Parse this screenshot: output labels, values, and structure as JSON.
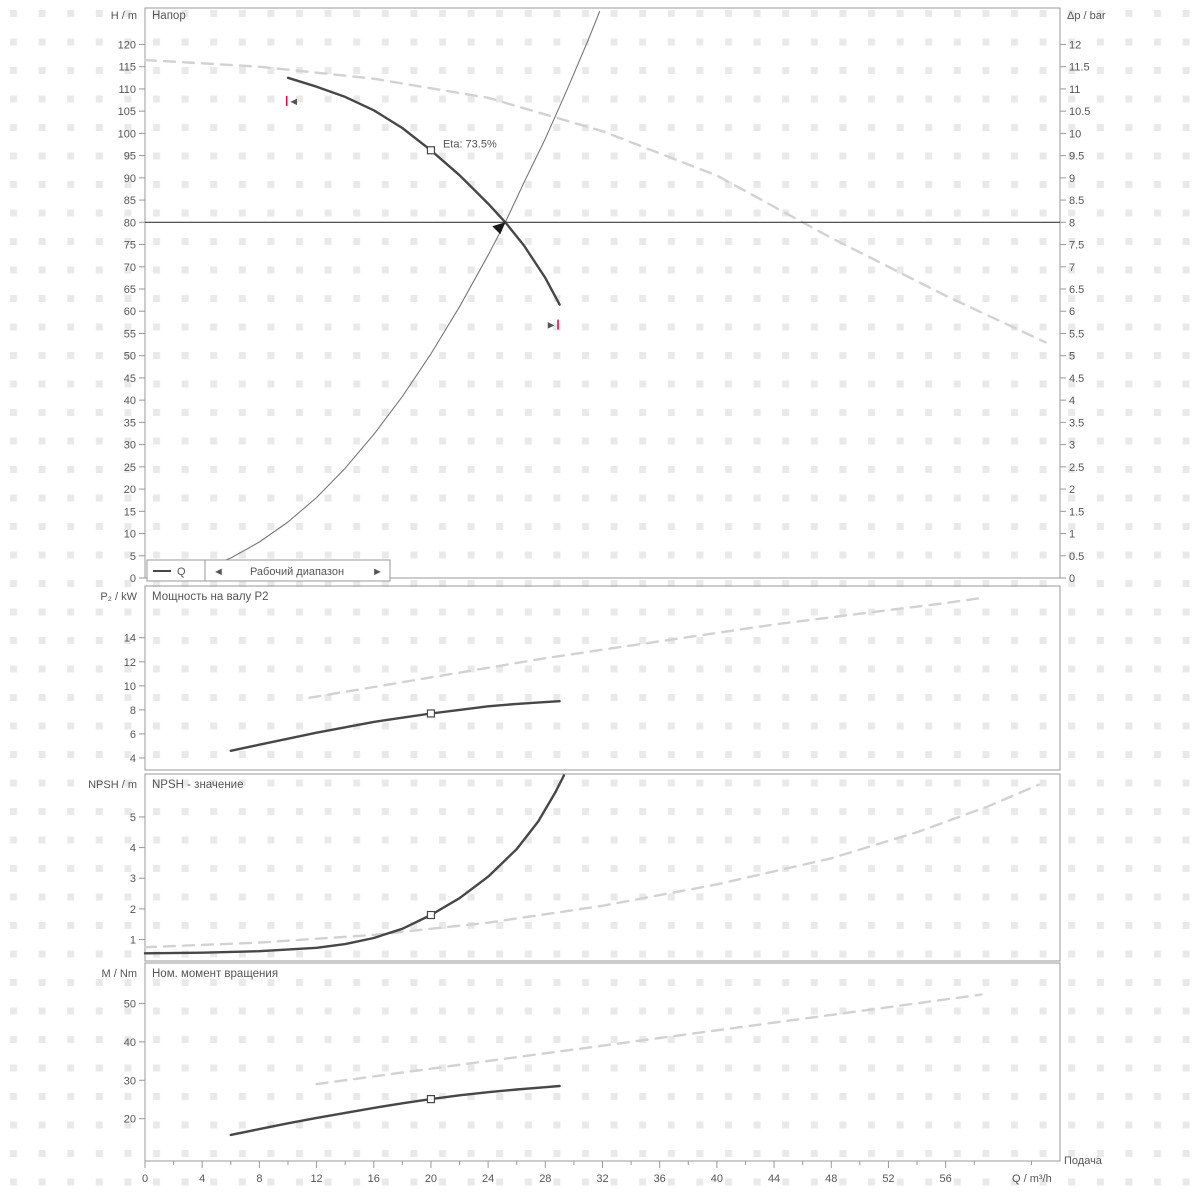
{
  "colors": {
    "dark_curve": "#474747",
    "light_curve": "#d2d2d2",
    "thin_curve": "#777777",
    "axis": "#999999",
    "text": "#555555",
    "grid": "#e9e9e9",
    "red": "#e10050",
    "hline": "#3c3c3c",
    "legend_text": "#999999"
  },
  "x_axis": {
    "xlim": [
      0,
      64
    ],
    "ticks": [
      0,
      4,
      8,
      12,
      16,
      20,
      24,
      28,
      32,
      36,
      40,
      44,
      48,
      52,
      56
    ],
    "label": "Q / m³/h",
    "caption": "Подача"
  },
  "chart_data": [
    {
      "id": "head",
      "type": "line",
      "title": "Напор",
      "ylabel": "H / m",
      "ylabel_right": "Δp / bar",
      "ylim": [
        0,
        128.2
      ],
      "ylim_right": [
        0,
        12.82
      ],
      "yticks": [
        0,
        5,
        10,
        15,
        20,
        25,
        30,
        35,
        40,
        45,
        50,
        55,
        60,
        65,
        70,
        75,
        80,
        85,
        90,
        95,
        100,
        105,
        110,
        115,
        120
      ],
      "yticks_right": [
        0,
        0.5,
        1,
        1.5,
        2,
        2.5,
        3,
        3.5,
        4,
        4.5,
        5,
        5.5,
        6,
        6.5,
        7,
        7.5,
        8,
        8.5,
        9,
        9.5,
        10,
        10.5,
        11,
        11.5,
        12
      ],
      "series": [
        {
          "name": "full-range-curve",
          "style": "dashed-light",
          "points": [
            [
              0,
              116.5
            ],
            [
              8,
              115
            ],
            [
              16,
              112.3
            ],
            [
              24,
              108
            ],
            [
              32,
              100.5
            ],
            [
              40,
              90.5
            ],
            [
              48,
              76.5
            ],
            [
              56,
              63.5
            ],
            [
              63,
              53
            ]
          ]
        },
        {
          "name": "system-curve",
          "style": "thin-dark",
          "points": [
            [
              4,
              2
            ],
            [
              6,
              4.5
            ],
            [
              8,
              8.1
            ],
            [
              10,
              12.6
            ],
            [
              12,
              18.1
            ],
            [
              14,
              24.7
            ],
            [
              16,
              32.3
            ],
            [
              18,
              40.8
            ],
            [
              20,
              50.4
            ],
            [
              22,
              61
            ],
            [
              24,
              72.6
            ],
            [
              25.2,
              80
            ],
            [
              26.5,
              88.9
            ],
            [
              28,
              98.8
            ],
            [
              29.5,
              109.7
            ],
            [
              31,
              121
            ],
            [
              31.8,
              127.4
            ]
          ]
        },
        {
          "name": "pump-curve",
          "style": "solid-dark",
          "points": [
            [
              10,
              112.5
            ],
            [
              12,
              110.5
            ],
            [
              14,
              108.2
            ],
            [
              16,
              105.2
            ],
            [
              18,
              101.2
            ],
            [
              20,
              96.2
            ],
            [
              22,
              90.6
            ],
            [
              24,
              84.2
            ],
            [
              25.2,
              80
            ],
            [
              26.5,
              74.8
            ],
            [
              28,
              67.5
            ],
            [
              29,
              61.5
            ]
          ]
        },
        {
          "name": "duty-head-line",
          "type": "hline",
          "value": 80
        }
      ],
      "marker": {
        "q": 20,
        "v": 96.2,
        "label": "Eta: 73.5%"
      },
      "duty_point": {
        "q": 25.2,
        "v": 80
      },
      "range_markers": [
        {
          "q": 10.4,
          "v": 107.3,
          "dir": "left"
        },
        {
          "q": 28.4,
          "v": 57,
          "dir": "right"
        }
      ],
      "legend": {
        "series_label": "Q",
        "range_label": "Рабочий диапазон"
      }
    },
    {
      "id": "power",
      "type": "line",
      "title": "Мощность на валу P2",
      "ylabel": "P₂ / kW",
      "ylim": [
        3,
        18.3
      ],
      "yticks": [
        4,
        6,
        8,
        10,
        12,
        14
      ],
      "series": [
        {
          "name": "power-full-range-curve",
          "style": "dashed-light",
          "points": [
            [
              11.5,
              9
            ],
            [
              16,
              9.9
            ],
            [
              20,
              10.7
            ],
            [
              24,
              11.5
            ],
            [
              28,
              12.3
            ],
            [
              32,
              13
            ],
            [
              36,
              13.7
            ],
            [
              40,
              14.4
            ],
            [
              44,
              15.1
            ],
            [
              48,
              15.7
            ],
            [
              52,
              16.3
            ],
            [
              55.5,
              16.8
            ],
            [
              58.5,
              17.3
            ]
          ]
        },
        {
          "name": "power-curve",
          "style": "solid-dark",
          "points": [
            [
              6,
              4.6
            ],
            [
              8,
              5.1
            ],
            [
              10,
              5.6
            ],
            [
              12,
              6.1
            ],
            [
              14,
              6.55
            ],
            [
              16,
              7
            ],
            [
              18,
              7.35
            ],
            [
              20,
              7.7
            ],
            [
              22,
              8
            ],
            [
              24,
              8.3
            ],
            [
              26,
              8.5
            ],
            [
              28,
              8.65
            ],
            [
              29,
              8.72
            ]
          ]
        }
      ],
      "marker": {
        "q": 20,
        "v": 7.7
      }
    },
    {
      "id": "npsh",
      "type": "line",
      "title": "NPSH - значение",
      "ylabel": "NPSH / m",
      "ylim": [
        0.3,
        6.4
      ],
      "yticks": [
        1,
        2,
        3,
        4,
        5
      ],
      "series": [
        {
          "name": "npsh-full-range-curve",
          "style": "dashed-light",
          "points": [
            [
              0,
              0.75
            ],
            [
              8,
              0.9
            ],
            [
              16,
              1.15
            ],
            [
              24,
              1.55
            ],
            [
              32,
              2.1
            ],
            [
              40,
              2.8
            ],
            [
              48,
              3.65
            ],
            [
              54,
              4.5
            ],
            [
              59,
              5.35
            ],
            [
              62.5,
              6.05
            ]
          ]
        },
        {
          "name": "npsh-curve",
          "style": "solid-dark",
          "points": [
            [
              0,
              0.55
            ],
            [
              4,
              0.57
            ],
            [
              8,
              0.62
            ],
            [
              12,
              0.73
            ],
            [
              14,
              0.85
            ],
            [
              16,
              1.05
            ],
            [
              18,
              1.35
            ],
            [
              20,
              1.8
            ],
            [
              22,
              2.35
            ],
            [
              24,
              3.05
            ],
            [
              26,
              3.95
            ],
            [
              27.5,
              4.85
            ],
            [
              28.7,
              5.8
            ],
            [
              29.3,
              6.35
            ]
          ]
        }
      ],
      "marker": {
        "q": 20,
        "v": 1.8
      }
    },
    {
      "id": "torque",
      "type": "line",
      "title": "Ном. момент вращения",
      "ylabel": "M / Nm",
      "ylim": [
        9,
        60.5
      ],
      "yticks": [
        20,
        30,
        40,
        50
      ],
      "series": [
        {
          "name": "torque-full-range-curve",
          "style": "dashed-light",
          "points": [
            [
              12,
              29
            ],
            [
              16,
              31
            ],
            [
              20,
              33
            ],
            [
              24,
              35
            ],
            [
              28,
              37
            ],
            [
              32,
              39
            ],
            [
              36,
              41
            ],
            [
              40,
              43
            ],
            [
              44,
              45
            ],
            [
              48,
              47
            ],
            [
              52,
              49
            ],
            [
              55,
              50.5
            ],
            [
              58.5,
              52.3
            ]
          ]
        },
        {
          "name": "torque-curve",
          "style": "solid-dark",
          "points": [
            [
              6,
              15.8
            ],
            [
              8,
              17.3
            ],
            [
              10,
              18.8
            ],
            [
              12,
              20.2
            ],
            [
              14,
              21.5
            ],
            [
              16,
              22.8
            ],
            [
              18,
              24
            ],
            [
              20,
              25.1
            ],
            [
              22,
              26.1
            ],
            [
              24,
              26.9
            ],
            [
              26,
              27.6
            ],
            [
              28,
              28.2
            ],
            [
              29,
              28.5
            ]
          ]
        }
      ],
      "marker": {
        "q": 20,
        "v": 25.1
      }
    }
  ]
}
